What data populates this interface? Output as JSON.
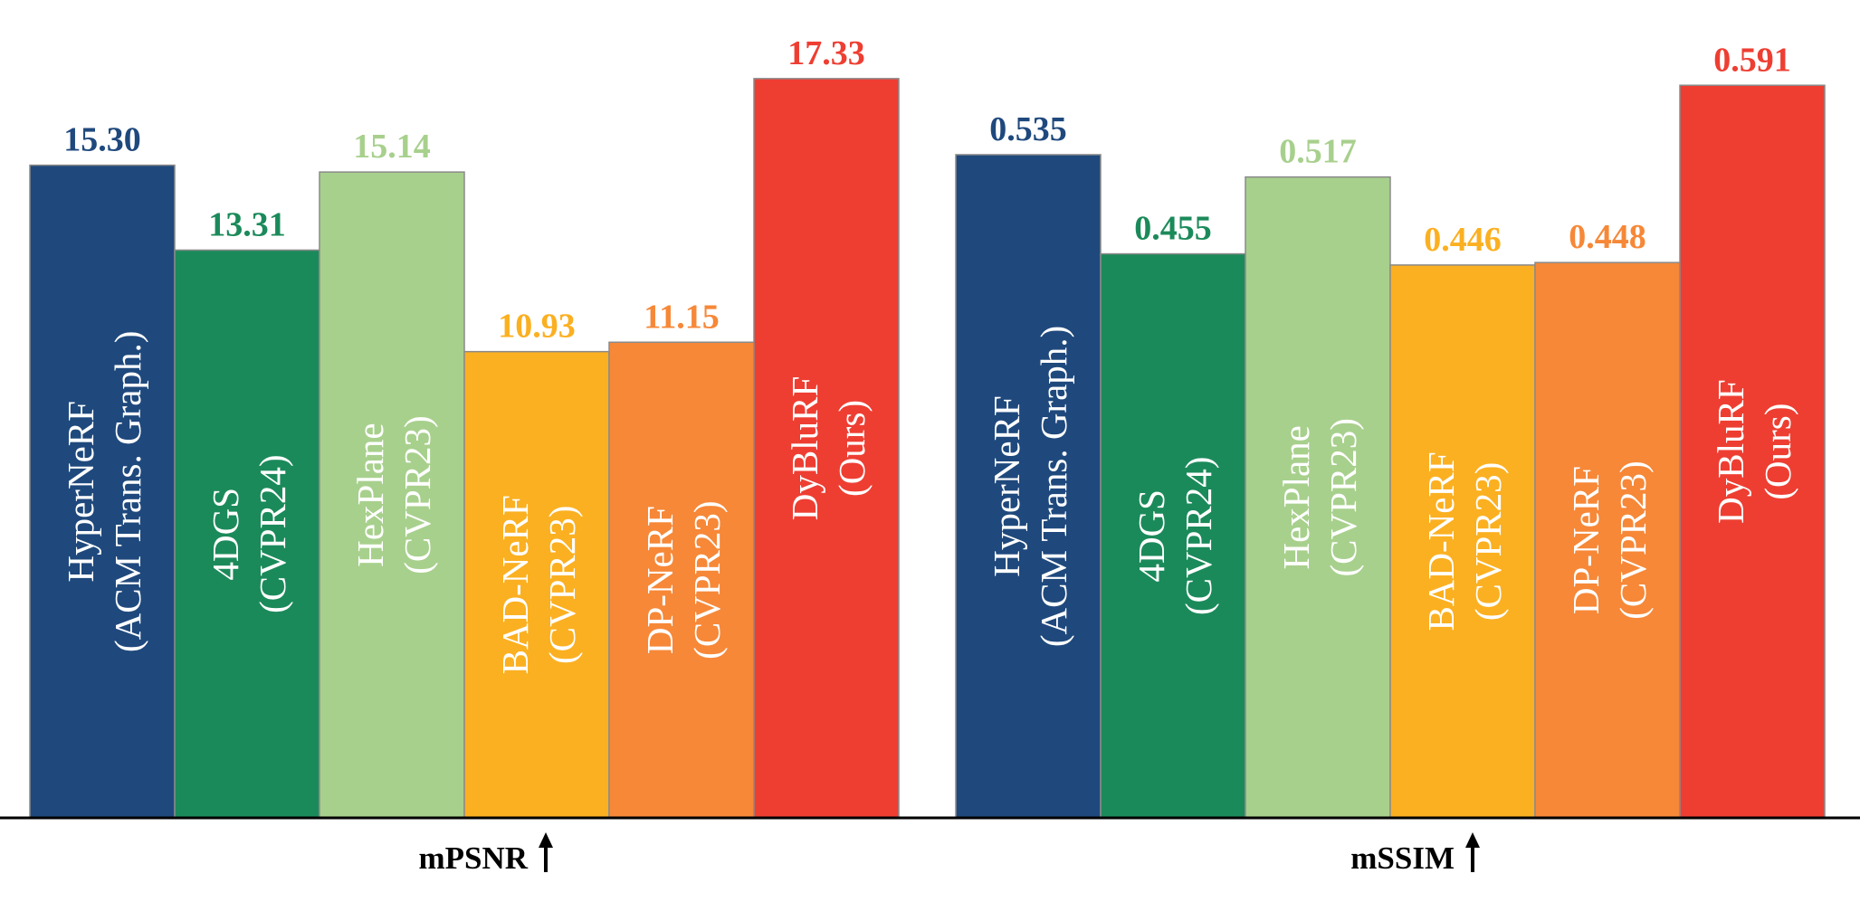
{
  "colors": {
    "HyperNeRF": "#1f497d",
    "4DGS": "#1b8a5a",
    "HexPlane": "#a8d08d",
    "BAD-NeRF": "#fbb021",
    "DP-NeRF": "#f68838",
    "DyBluRF": "#ee3e32"
  },
  "chart_data": [
    {
      "type": "bar",
      "xlabel": "mPSNR",
      "ylim": [
        0,
        17.9
      ],
      "categories": [
        {
          "key": "HyperNeRF",
          "line1": "HyperNeRF",
          "line2": "(ACM Trans. Graph.)"
        },
        {
          "key": "4DGS",
          "line1": "4DGS",
          "line2": "(CVPR24)"
        },
        {
          "key": "HexPlane",
          "line1": "HexPlane",
          "line2": "(CVPR23)"
        },
        {
          "key": "BAD-NeRF",
          "line1": "BAD-NeRF",
          "line2": "(CVPR23)"
        },
        {
          "key": "DP-NeRF",
          "line1": "DP-NeRF",
          "line2": "(CVPR23)"
        },
        {
          "key": "DyBluRF",
          "line1": "DyBluRF",
          "line2": "(Ours)"
        }
      ],
      "values": [
        15.3,
        13.31,
        15.14,
        10.93,
        11.15,
        17.33
      ],
      "labels": [
        "15.30",
        "13.31",
        "15.14",
        "10.93",
        "11.15",
        "17.33"
      ]
    },
    {
      "type": "bar",
      "xlabel": "mSSIM",
      "ylim": [
        0,
        0.616
      ],
      "categories": [
        {
          "key": "HyperNeRF",
          "line1": "HyperNeRF",
          "line2": "(ACM Trans. Graph.)"
        },
        {
          "key": "4DGS",
          "line1": "4DGS",
          "line2": "(CVPR24)"
        },
        {
          "key": "HexPlane",
          "line1": "HexPlane",
          "line2": "(CVPR23)"
        },
        {
          "key": "BAD-NeRF",
          "line1": "BAD-NeRF",
          "line2": "(CVPR23)"
        },
        {
          "key": "DP-NeRF",
          "line1": "DP-NeRF",
          "line2": "(CVPR23)"
        },
        {
          "key": "DyBluRF",
          "line1": "DyBluRF",
          "line2": "(Ours)"
        }
      ],
      "values": [
        0.535,
        0.455,
        0.517,
        0.446,
        0.448,
        0.591
      ],
      "labels": [
        "0.535",
        "0.455",
        "0.517",
        "0.446",
        "0.448",
        "0.591"
      ]
    }
  ]
}
